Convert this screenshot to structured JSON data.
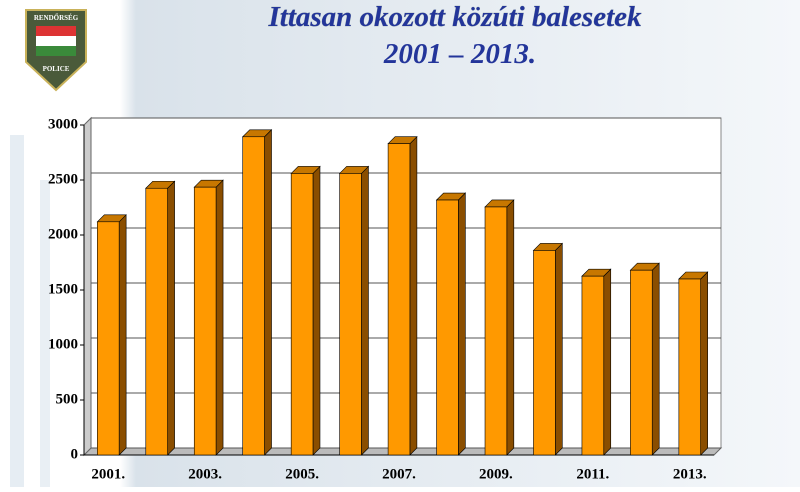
{
  "logo": {
    "top": "RENDŐRSÉG",
    "bottom": "POLICE"
  },
  "chart_data": {
    "type": "bar",
    "title": "Ittasan okozott közúti balesetek",
    "subtitle": "2001 – 2013.",
    "categories": [
      "2001.",
      null,
      "2003.",
      null,
      "2005.",
      null,
      "2007.",
      null,
      "2009.",
      null,
      "2011.",
      null,
      "2013."
    ],
    "values": [
      2120,
      2425,
      2435,
      2893,
      2560,
      2560,
      2830,
      2318,
      2255,
      1860,
      1626,
      1680,
      1600
    ],
    "color": "#ff9900",
    "ylim": [
      0,
      3000
    ],
    "yticks": [
      0,
      500,
      1000,
      1500,
      2000,
      2500,
      3000
    ],
    "grid": true
  }
}
